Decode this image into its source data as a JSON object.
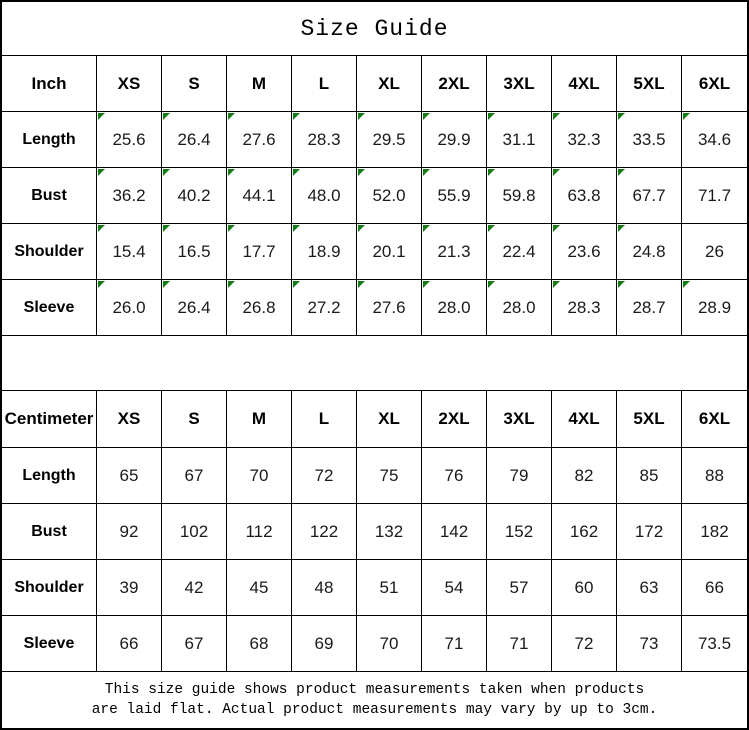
{
  "title": "Size Guide",
  "colors": {
    "triangle": "#157c15",
    "border": "#000000",
    "background": "#ffffff"
  },
  "tables": [
    {
      "unit": "Inch",
      "sizes": [
        "XS",
        "S",
        "M",
        "L",
        "XL",
        "2XL",
        "3XL",
        "4XL",
        "5XL",
        "6XL"
      ],
      "rows": [
        {
          "label": "Length",
          "values": [
            "25.6",
            "26.4",
            "27.6",
            "28.3",
            "29.5",
            "29.9",
            "31.1",
            "32.3",
            "33.5",
            "34.6"
          ],
          "flags": [
            1,
            1,
            1,
            1,
            1,
            1,
            1,
            1,
            1,
            1
          ]
        },
        {
          "label": "Bust",
          "values": [
            "36.2",
            "40.2",
            "44.1",
            "48.0",
            "52.0",
            "55.9",
            "59.8",
            "63.8",
            "67.7",
            "71.7"
          ],
          "flags": [
            1,
            1,
            1,
            1,
            1,
            1,
            1,
            1,
            1,
            0
          ]
        },
        {
          "label": "Shoulder",
          "values": [
            "15.4",
            "16.5",
            "17.7",
            "18.9",
            "20.1",
            "21.3",
            "22.4",
            "23.6",
            "24.8",
            "26"
          ],
          "flags": [
            1,
            1,
            1,
            1,
            1,
            1,
            1,
            1,
            1,
            0
          ]
        },
        {
          "label": "Sleeve",
          "values": [
            "26.0",
            "26.4",
            "26.8",
            "27.2",
            "27.6",
            "28.0",
            "28.0",
            "28.3",
            "28.7",
            "28.9"
          ],
          "flags": [
            1,
            1,
            1,
            1,
            1,
            1,
            1,
            1,
            1,
            1
          ]
        }
      ]
    },
    {
      "unit": "Centimeter",
      "sizes": [
        "XS",
        "S",
        "M",
        "L",
        "XL",
        "2XL",
        "3XL",
        "4XL",
        "5XL",
        "6XL"
      ],
      "rows": [
        {
          "label": "Length",
          "values": [
            "65",
            "67",
            "70",
            "72",
            "75",
            "76",
            "79",
            "82",
            "85",
            "88"
          ],
          "flags": [
            0,
            0,
            0,
            0,
            0,
            0,
            0,
            0,
            0,
            0
          ]
        },
        {
          "label": "Bust",
          "values": [
            "92",
            "102",
            "112",
            "122",
            "132",
            "142",
            "152",
            "162",
            "172",
            "182"
          ],
          "flags": [
            0,
            0,
            0,
            0,
            0,
            0,
            0,
            0,
            0,
            0
          ]
        },
        {
          "label": "Shoulder",
          "values": [
            "39",
            "42",
            "45",
            "48",
            "51",
            "54",
            "57",
            "60",
            "63",
            "66"
          ],
          "flags": [
            0,
            0,
            0,
            0,
            0,
            0,
            0,
            0,
            0,
            0
          ]
        },
        {
          "label": "Sleeve",
          "values": [
            "66",
            "67",
            "68",
            "69",
            "70",
            "71",
            "71",
            "72",
            "73",
            "73.5"
          ],
          "flags": [
            0,
            0,
            0,
            0,
            0,
            0,
            0,
            0,
            0,
            0
          ]
        }
      ]
    }
  ],
  "footer": {
    "line1": "This size guide shows product measurements taken when products",
    "line2": "are laid flat. Actual product measurements may vary by up to 3cm."
  }
}
